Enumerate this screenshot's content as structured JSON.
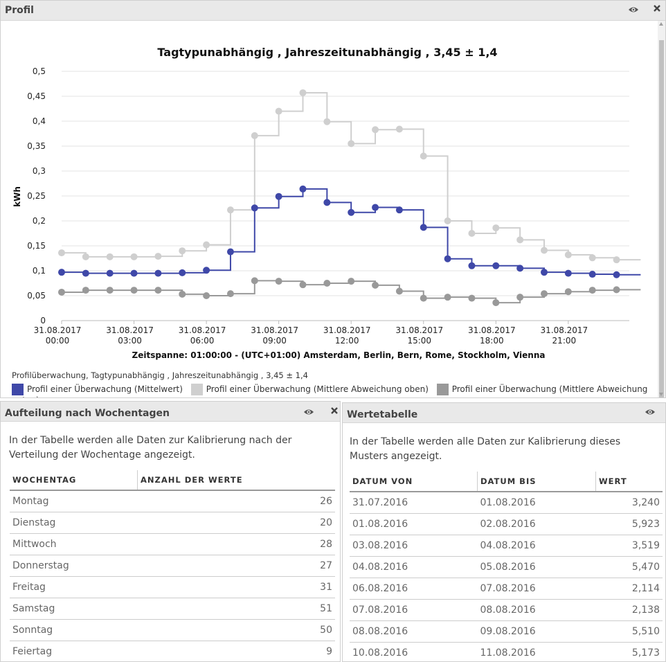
{
  "panel_profil": {
    "title": "Profil"
  },
  "panel_wochentage": {
    "title": "Aufteilung nach Wochentagen",
    "description": "In der Tabelle werden alle Daten zur Kalibrierung nach der Verteilung der Wochentage angezeigt.",
    "columns": [
      "WOCHENTAG",
      "ANZAHL DER WERTE"
    ],
    "rows": [
      {
        "tag": "Montag",
        "anzahl": "26"
      },
      {
        "tag": "Dienstag",
        "anzahl": "20"
      },
      {
        "tag": "Mittwoch",
        "anzahl": "28"
      },
      {
        "tag": "Donnerstag",
        "anzahl": "27"
      },
      {
        "tag": "Freitag",
        "anzahl": "31"
      },
      {
        "tag": "Samstag",
        "anzahl": "51"
      },
      {
        "tag": "Sonntag",
        "anzahl": "50"
      },
      {
        "tag": "Feiertag",
        "anzahl": "9"
      }
    ]
  },
  "panel_werte": {
    "title": "Wertetabelle",
    "description": "In der Tabelle werden alle Daten zur Kalibrierung dieses Musters angezeigt.",
    "columns": [
      "DATUM VON",
      "DATUM BIS",
      "WERT"
    ],
    "rows": [
      {
        "von": "31.07.2016",
        "bis": "01.08.2016",
        "wert": "3,240"
      },
      {
        "von": "01.08.2016",
        "bis": "02.08.2016",
        "wert": "5,923"
      },
      {
        "von": "03.08.2016",
        "bis": "04.08.2016",
        "wert": "3,519"
      },
      {
        "von": "04.08.2016",
        "bis": "05.08.2016",
        "wert": "5,470"
      },
      {
        "von": "06.08.2016",
        "bis": "07.08.2016",
        "wert": "2,114"
      },
      {
        "von": "07.08.2016",
        "bis": "08.08.2016",
        "wert": "2,138"
      },
      {
        "von": "08.08.2016",
        "bis": "09.08.2016",
        "wert": "5,510"
      },
      {
        "von": "10.08.2016",
        "bis": "11.08.2016",
        "wert": "5,173"
      }
    ]
  },
  "icons": {
    "eye": "eye-icon",
    "close": "close-icon"
  },
  "chart_data": {
    "type": "line",
    "step": true,
    "title": "Tagtypunabhängig , Jahreszeitunabhängig , 3,45 ± 1,4",
    "xlabel": "Zeitspanne: 01:00:00 - (UTC+01:00) Amsterdam, Berlin, Bern, Rome, Stockholm, Vienna",
    "ylabel": "kWh",
    "ylim": [
      0,
      0.5
    ],
    "yticks": [
      "0",
      "0,05",
      "0,1",
      "0,15",
      "0,2",
      "0,25",
      "0,3",
      "0,35",
      "0,4",
      "0,45",
      "0,5"
    ],
    "xticks": [
      {
        "date": "31.08.2017",
        "time": "00:00"
      },
      {
        "date": "31.08.2017",
        "time": "03:00"
      },
      {
        "date": "31.08.2017",
        "time": "06:00"
      },
      {
        "date": "31.08.2017",
        "time": "09:00"
      },
      {
        "date": "31.08.2017",
        "time": "12:00"
      },
      {
        "date": "31.08.2017",
        "time": "15:00"
      },
      {
        "date": "31.08.2017",
        "time": "18:00"
      },
      {
        "date": "31.08.2017",
        "time": "21:00"
      }
    ],
    "x_hours": [
      0,
      1,
      2,
      3,
      4,
      5,
      6,
      7,
      8,
      9,
      10,
      11,
      12,
      13,
      14,
      15,
      16,
      17,
      18,
      19,
      20,
      21,
      22,
      23
    ],
    "legend_caption": "Profilüberwachung, Tagtypunabhängig , Jahreszeitunabhängig , 3,45 ± 1,4",
    "grid": true,
    "series": [
      {
        "name": "Profil einer Überwachung (Mittelwert)",
        "color": "#3f48a8",
        "values": [
          0.097,
          0.095,
          0.095,
          0.095,
          0.095,
          0.096,
          0.101,
          0.138,
          0.226,
          0.249,
          0.264,
          0.237,
          0.217,
          0.227,
          0.222,
          0.187,
          0.124,
          0.11,
          0.11,
          0.105,
          0.097,
          0.095,
          0.093,
          0.092
        ]
      },
      {
        "name": "Profil einer Überwachung (Mittlere Abweichung oben)",
        "color": "#cfcfcf",
        "values": [
          0.136,
          0.128,
          0.128,
          0.128,
          0.129,
          0.14,
          0.152,
          0.222,
          0.371,
          0.42,
          0.457,
          0.399,
          0.355,
          0.383,
          0.384,
          0.33,
          0.2,
          0.175,
          0.186,
          0.162,
          0.141,
          0.132,
          0.126,
          0.122
        ]
      },
      {
        "name": "Profil einer Überwachung (Mittlere Abweichung unten)",
        "color": "#999999",
        "values": [
          0.057,
          0.061,
          0.061,
          0.061,
          0.061,
          0.053,
          0.05,
          0.054,
          0.08,
          0.079,
          0.072,
          0.075,
          0.079,
          0.071,
          0.059,
          0.045,
          0.047,
          0.045,
          0.036,
          0.047,
          0.054,
          0.058,
          0.061,
          0.062
        ]
      }
    ]
  }
}
